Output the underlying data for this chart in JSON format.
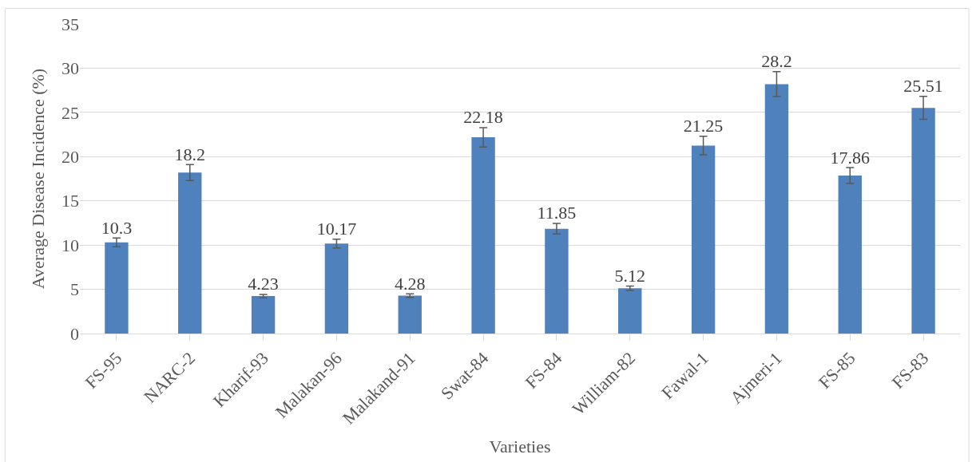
{
  "chart_data": {
    "type": "bar",
    "xlabel": "Varieties",
    "ylabel": "Average Disease Incidence (%)",
    "categories": [
      "FS-95",
      "NARC-2",
      "Kharif-93",
      "Malakan-96",
      "Malakand-91",
      "Swat-84",
      "FS-84",
      "William-82",
      "Fawal-1",
      "Ajmeri-1",
      "FS-85",
      "FS-83"
    ],
    "values": [
      10.3,
      18.2,
      4.23,
      10.17,
      4.28,
      22.18,
      11.85,
      5.12,
      21.25,
      28.2,
      17.86,
      25.51
    ],
    "errors": [
      0.5,
      0.9,
      0.2,
      0.5,
      0.2,
      1.1,
      0.6,
      0.25,
      1.05,
      1.4,
      0.9,
      1.3
    ],
    "color": "#4f81bd",
    "ylim": [
      0,
      35
    ],
    "yticks": [
      0,
      5,
      10,
      15,
      20,
      25,
      30,
      35
    ],
    "grid": "y",
    "data_labels": true
  }
}
